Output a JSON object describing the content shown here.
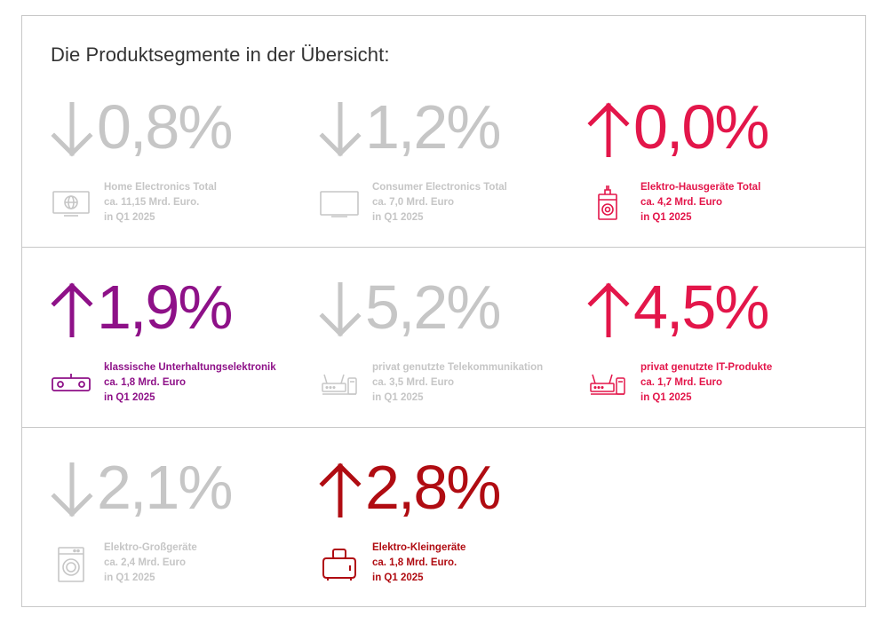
{
  "title": "Die Produktsegmente in der Übersicht:",
  "colors": {
    "grey": "#c6c6c6",
    "pink": "#e3164a",
    "purple": "#8e1188",
    "darkred": "#b00c12",
    "border": "#c8c8c8"
  },
  "segments": [
    {
      "trend": "down",
      "percent": "0,8%",
      "icon": "monitor-globe-icon",
      "color": "#c6c6c6",
      "label": "Home Electronics Total",
      "volume": "ca. 11,15 Mrd. Euro.",
      "period": "in Q1 2025"
    },
    {
      "trend": "down",
      "percent": "1,2%",
      "icon": "tv-icon",
      "color": "#c6c6c6",
      "label": "Consumer Electronics Total",
      "volume": "ca. 7,0 Mrd. Euro",
      "period": "in Q1 2025"
    },
    {
      "trend": "up",
      "percent": "0,0%",
      "icon": "washing-machine-plug-icon",
      "color": "#e3164a",
      "label": "Elektro-Hausgeräte Total",
      "volume": "ca. 4,2 Mrd. Euro",
      "period": "in Q1 2025"
    },
    {
      "trend": "up",
      "percent": "1,9%",
      "icon": "soundbar-icon",
      "color": "#8e1188",
      "label": "klassische Unterhaltungselektronik",
      "volume": "ca. 1,8 Mrd. Euro",
      "period": "in Q1 2025"
    },
    {
      "trend": "down",
      "percent": "5,2%",
      "icon": "router-phone-icon",
      "color": "#c6c6c6",
      "label": "privat genutzte Telekommunikation",
      "volume": "ca. 3,5 Mrd. Euro",
      "period": "in Q1 2025"
    },
    {
      "trend": "up",
      "percent": "4,5%",
      "icon": "router-phone-icon",
      "color": "#e3164a",
      "label": "privat genutzte IT-Produkte",
      "volume": "ca. 1,7 Mrd. Euro",
      "period": "in Q1 2025"
    },
    {
      "trend": "down",
      "percent": "2,1%",
      "icon": "washing-machine-icon",
      "color": "#c6c6c6",
      "label": "Elektro-Großgeräte",
      "volume": "ca. 2,4 Mrd. Euro",
      "period": "in Q1 2025"
    },
    {
      "trend": "up",
      "percent": "2,8%",
      "icon": "toaster-icon",
      "color": "#b00c12",
      "label": "Elektro-Kleingeräte",
      "volume": "ca. 1,8 Mrd. Euro.",
      "period": "in Q1 2025"
    }
  ]
}
